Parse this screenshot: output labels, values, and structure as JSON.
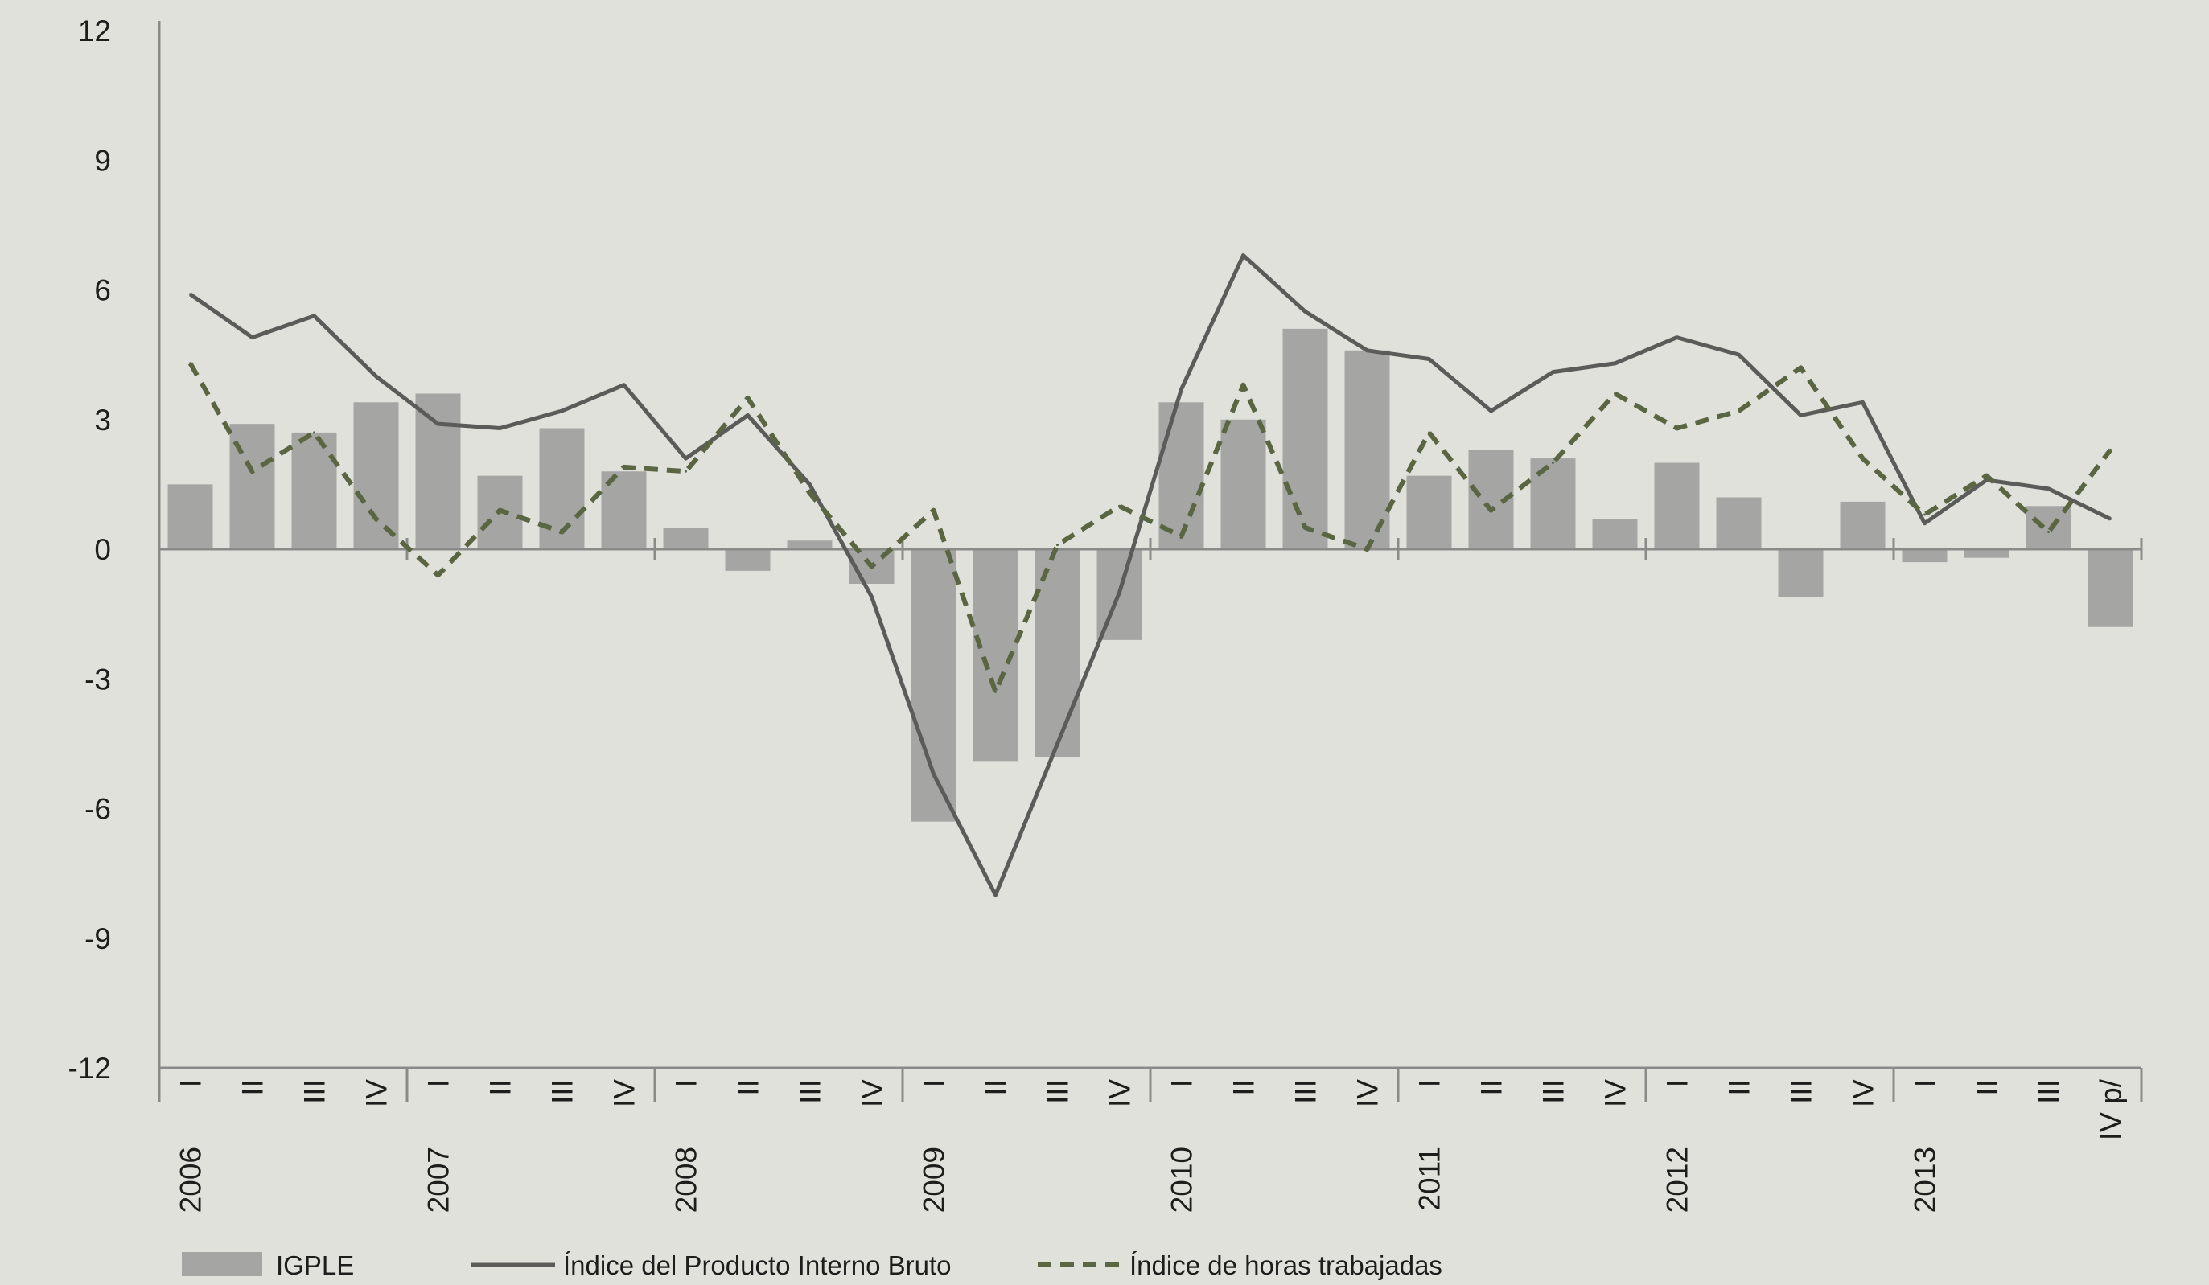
{
  "chart_data": {
    "type": "bar",
    "title": "",
    "xlabel": "",
    "ylabel": "",
    "ylim": [
      -12,
      12
    ],
    "y_ticks": [
      12,
      9,
      6,
      3,
      0,
      -3,
      -6,
      -9,
      -12
    ],
    "y_tick_labels": [
      "12",
      "9",
      "6",
      "3",
      "0",
      "-3",
      "-6",
      "-9",
      "-12"
    ],
    "grid": false,
    "legend_position": "bottom",
    "years": [
      "2006",
      "2007",
      "2008",
      "2009",
      "2010",
      "2011",
      "2012",
      "2013"
    ],
    "categories": [
      "2006 I",
      "2006 II",
      "2006 III",
      "2006 IV",
      "2007 I",
      "2007 II",
      "2007 III",
      "2007 IV",
      "2008 I",
      "2008 II",
      "2008 III",
      "2008 IV",
      "2009 I",
      "2009 II",
      "2009 III",
      "2009 IV",
      "2010 I",
      "2010 II",
      "2010 III",
      "2010 IV",
      "2011 I",
      "2011 II",
      "2011 III",
      "2011 IV",
      "2012 I",
      "2012 II",
      "2012 III",
      "2012 IV",
      "2013 I",
      "2013 II",
      "2013 III",
      "2013 IV p/"
    ],
    "quarter_labels": [
      "I",
      "II",
      "III",
      "IV",
      "I",
      "II",
      "III",
      "IV",
      "I",
      "II",
      "III",
      "IV",
      "I",
      "II",
      "III",
      "IV",
      "I",
      "II",
      "III",
      "IV",
      "I",
      "II",
      "III",
      "IV",
      "I",
      "II",
      "III",
      "IV",
      "I",
      "II",
      "III",
      "IV p/"
    ],
    "series": [
      {
        "name": "IGPLE",
        "type": "bar",
        "color": "#a5a5a4",
        "values": [
          1.5,
          2.9,
          2.7,
          3.4,
          3.6,
          1.7,
          2.8,
          1.8,
          0.5,
          -0.5,
          0.2,
          -0.8,
          -6.3,
          -4.9,
          -4.8,
          -2.1,
          3.4,
          3.0,
          5.1,
          4.6,
          1.7,
          2.3,
          2.1,
          0.7,
          2.0,
          1.2,
          -1.1,
          1.1,
          -0.3,
          -0.2,
          1.0,
          -1.8
        ]
      },
      {
        "name": "Índice del Producto Interno Bruto",
        "type": "line",
        "color": "#5b5b59",
        "dash": "solid",
        "values": [
          5.9,
          4.9,
          5.4,
          4.0,
          2.9,
          2.8,
          3.2,
          3.8,
          2.1,
          3.1,
          1.5,
          -1.1,
          -5.2,
          -8.0,
          -4.5,
          -1.0,
          3.7,
          6.8,
          5.5,
          4.6,
          4.4,
          3.2,
          4.1,
          4.3,
          4.9,
          4.5,
          3.1,
          3.4,
          0.6,
          1.6,
          1.4,
          0.7
        ]
      },
      {
        "name": "Índice de horas trabajadas",
        "type": "line",
        "color": "#5a6642",
        "dash": "dashed",
        "values": [
          4.3,
          1.8,
          2.7,
          0.7,
          -0.6,
          0.9,
          0.4,
          1.9,
          1.8,
          3.5,
          1.3,
          -0.4,
          0.9,
          -3.3,
          0.1,
          1.0,
          0.3,
          3.8,
          0.5,
          0.0,
          2.7,
          0.9,
          2.0,
          3.6,
          2.8,
          3.2,
          4.2,
          2.1,
          0.8,
          1.7,
          0.4,
          2.3
        ]
      }
    ]
  }
}
